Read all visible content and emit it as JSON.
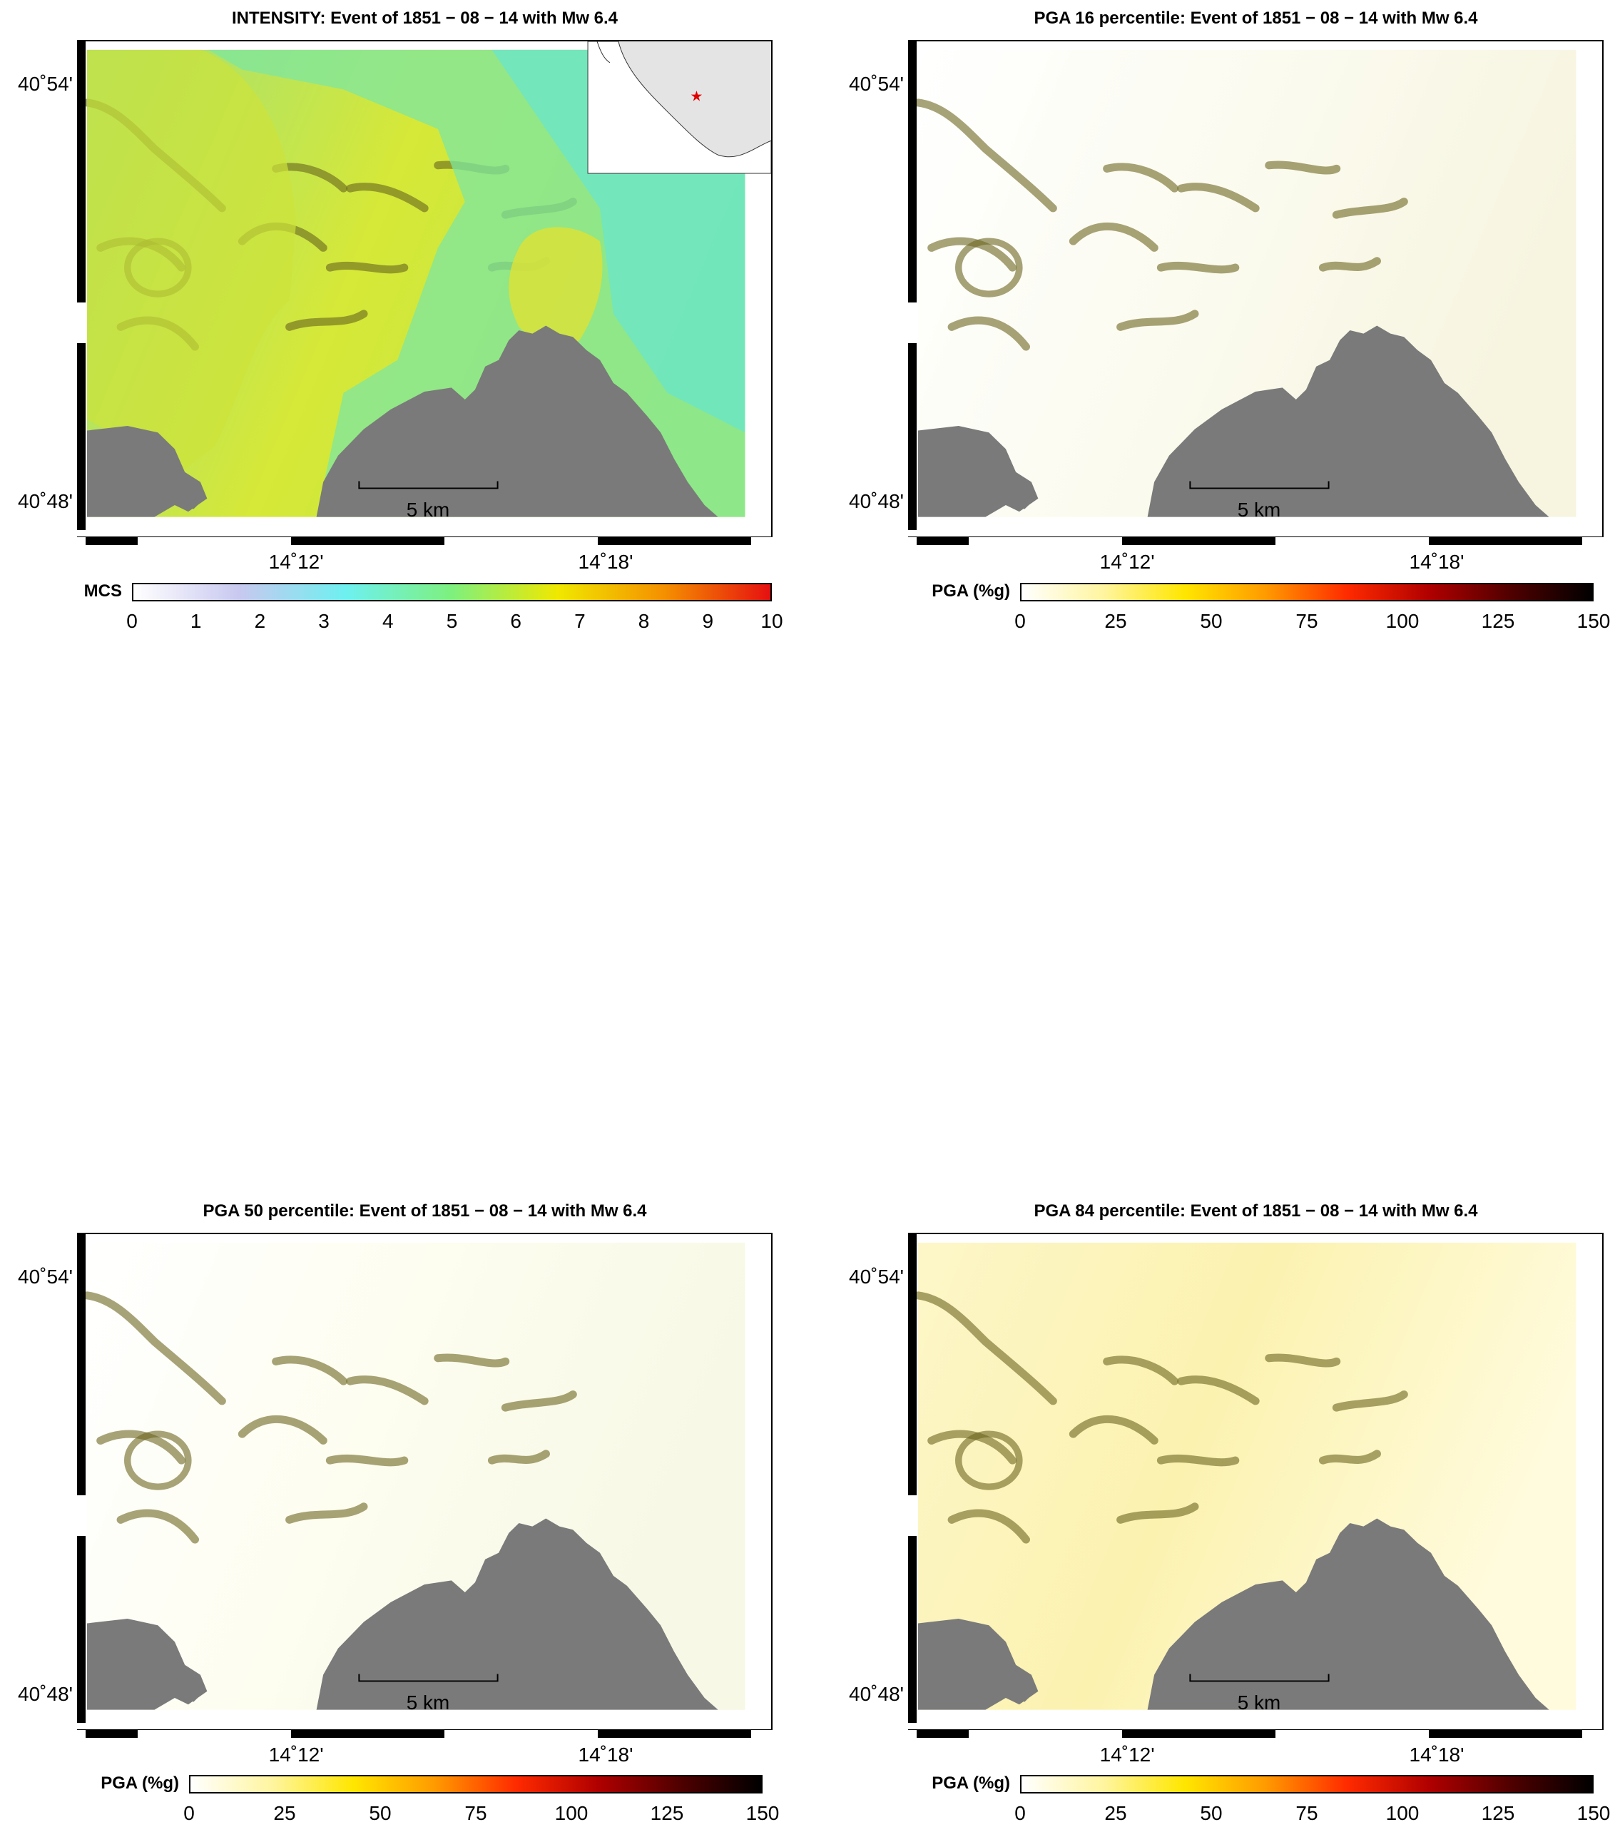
{
  "panels": [
    {
      "id": "intensity",
      "title": "INTENSITY: Event of 1851 − 08 − 14 with Mw 6.4",
      "lat_ticks": [
        "40˚54'",
        "40˚48'"
      ],
      "lon_ticks": [
        "14˚12'",
        "14˚18'"
      ],
      "scale_label": "5 km",
      "colorbar_label": "MCS",
      "colorbar_ticks": [
        "0",
        "1",
        "2",
        "3",
        "4",
        "5",
        "6",
        "7",
        "8",
        "9",
        "10"
      ],
      "colorbar_colors": [
        "#ffffff",
        "#c8c8f0",
        "#6ef0f0",
        "#7ef07e",
        "#f0e800",
        "#f59000",
        "#e61010"
      ],
      "land_colors": [
        "#9ce07c",
        "#d6e838",
        "#c0e840"
      ],
      "has_inset": true
    },
    {
      "id": "pga16",
      "title": "PGA 16 percentile: Event of 1851 − 08 − 14 with Mw 6.4",
      "lat_ticks": [
        "40˚54'",
        "40˚48'"
      ],
      "lon_ticks": [
        "14˚12'",
        "14˚18'"
      ],
      "scale_label": "5 km",
      "colorbar_label": "PGA (%g)",
      "colorbar_ticks": [
        "0",
        "25",
        "50",
        "75",
        "100",
        "125",
        "150"
      ],
      "colorbar_colors": [
        "#ffffff",
        "#fff5a0",
        "#ffe600",
        "#ff9a00",
        "#ff2a00",
        "#b00000",
        "#500000",
        "#000000"
      ],
      "land_colors": [
        "#ffffff",
        "#fbfbf0",
        "#f7f5e0"
      ],
      "has_inset": false
    },
    {
      "id": "pga50",
      "title": "PGA 50 percentile: Event of 1851 − 08 − 14 with Mw 6.4",
      "lat_ticks": [
        "40˚54'",
        "40˚48'"
      ],
      "lon_ticks": [
        "14˚12'",
        "14˚18'"
      ],
      "scale_label": "5 km",
      "colorbar_label": "PGA (%g)",
      "colorbar_ticks": [
        "0",
        "25",
        "50",
        "75",
        "100",
        "125",
        "150"
      ],
      "colorbar_colors": [
        "#ffffff",
        "#fff5a0",
        "#ffe600",
        "#ff9a00",
        "#ff2a00",
        "#b00000",
        "#500000",
        "#000000"
      ],
      "land_colors": [
        "#ffffff",
        "#fdfdf0",
        "#f8f8e6"
      ],
      "has_inset": false
    },
    {
      "id": "pga84",
      "title": "PGA 84 percentile: Event of 1851 − 08 − 14 with Mw 6.4",
      "lat_ticks": [
        "40˚54'",
        "40˚48'"
      ],
      "lon_ticks": [
        "14˚12'",
        "14˚18'"
      ],
      "scale_label": "5 km",
      "colorbar_label": "PGA (%g)",
      "colorbar_ticks": [
        "0",
        "25",
        "50",
        "75",
        "100",
        "125",
        "150"
      ],
      "colorbar_colors": [
        "#ffffff",
        "#fff5a0",
        "#ffe600",
        "#ff9a00",
        "#ff2a00",
        "#b00000",
        "#500000",
        "#000000"
      ],
      "land_colors": [
        "#fdf6c8",
        "#fbf2b0",
        "#fffbdc"
      ],
      "has_inset": false
    }
  ]
}
